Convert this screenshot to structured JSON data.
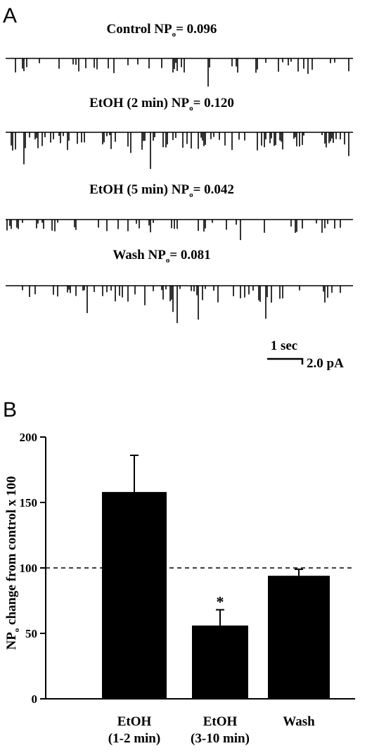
{
  "panel_a": {
    "label": "A",
    "traces": [
      {
        "label": "Control NP",
        "sub": "o",
        "value_text": "= 0.096"
      },
      {
        "label": "EtOH (2 min) NP",
        "sub": "o",
        "value_text": "= 0.120"
      },
      {
        "label": "EtOH (5 min) NP",
        "sub": "o",
        "value_text": "= 0.042"
      },
      {
        "label": "Wash NP",
        "sub": "o",
        "value_text": "= 0.081"
      }
    ],
    "scale_time": "1 sec",
    "scale_current": "2.0 pA"
  },
  "chart_data": {
    "type": "bar",
    "panel_label": "B",
    "y_label": {
      "main": "NP",
      "sub": "o",
      "rest": " change from control x 100"
    },
    "categories": [
      "EtOH (1-2 min)",
      "EtOH (3-10 min)",
      "Wash"
    ],
    "values": [
      158,
      56,
      94
    ],
    "errors": [
      28,
      12,
      5
    ],
    "color": "#000000",
    "reference_line": 100,
    "annotation": "*",
    "ylim": [
      0,
      200
    ],
    "yticks": [
      0,
      50,
      100,
      150,
      200
    ]
  }
}
